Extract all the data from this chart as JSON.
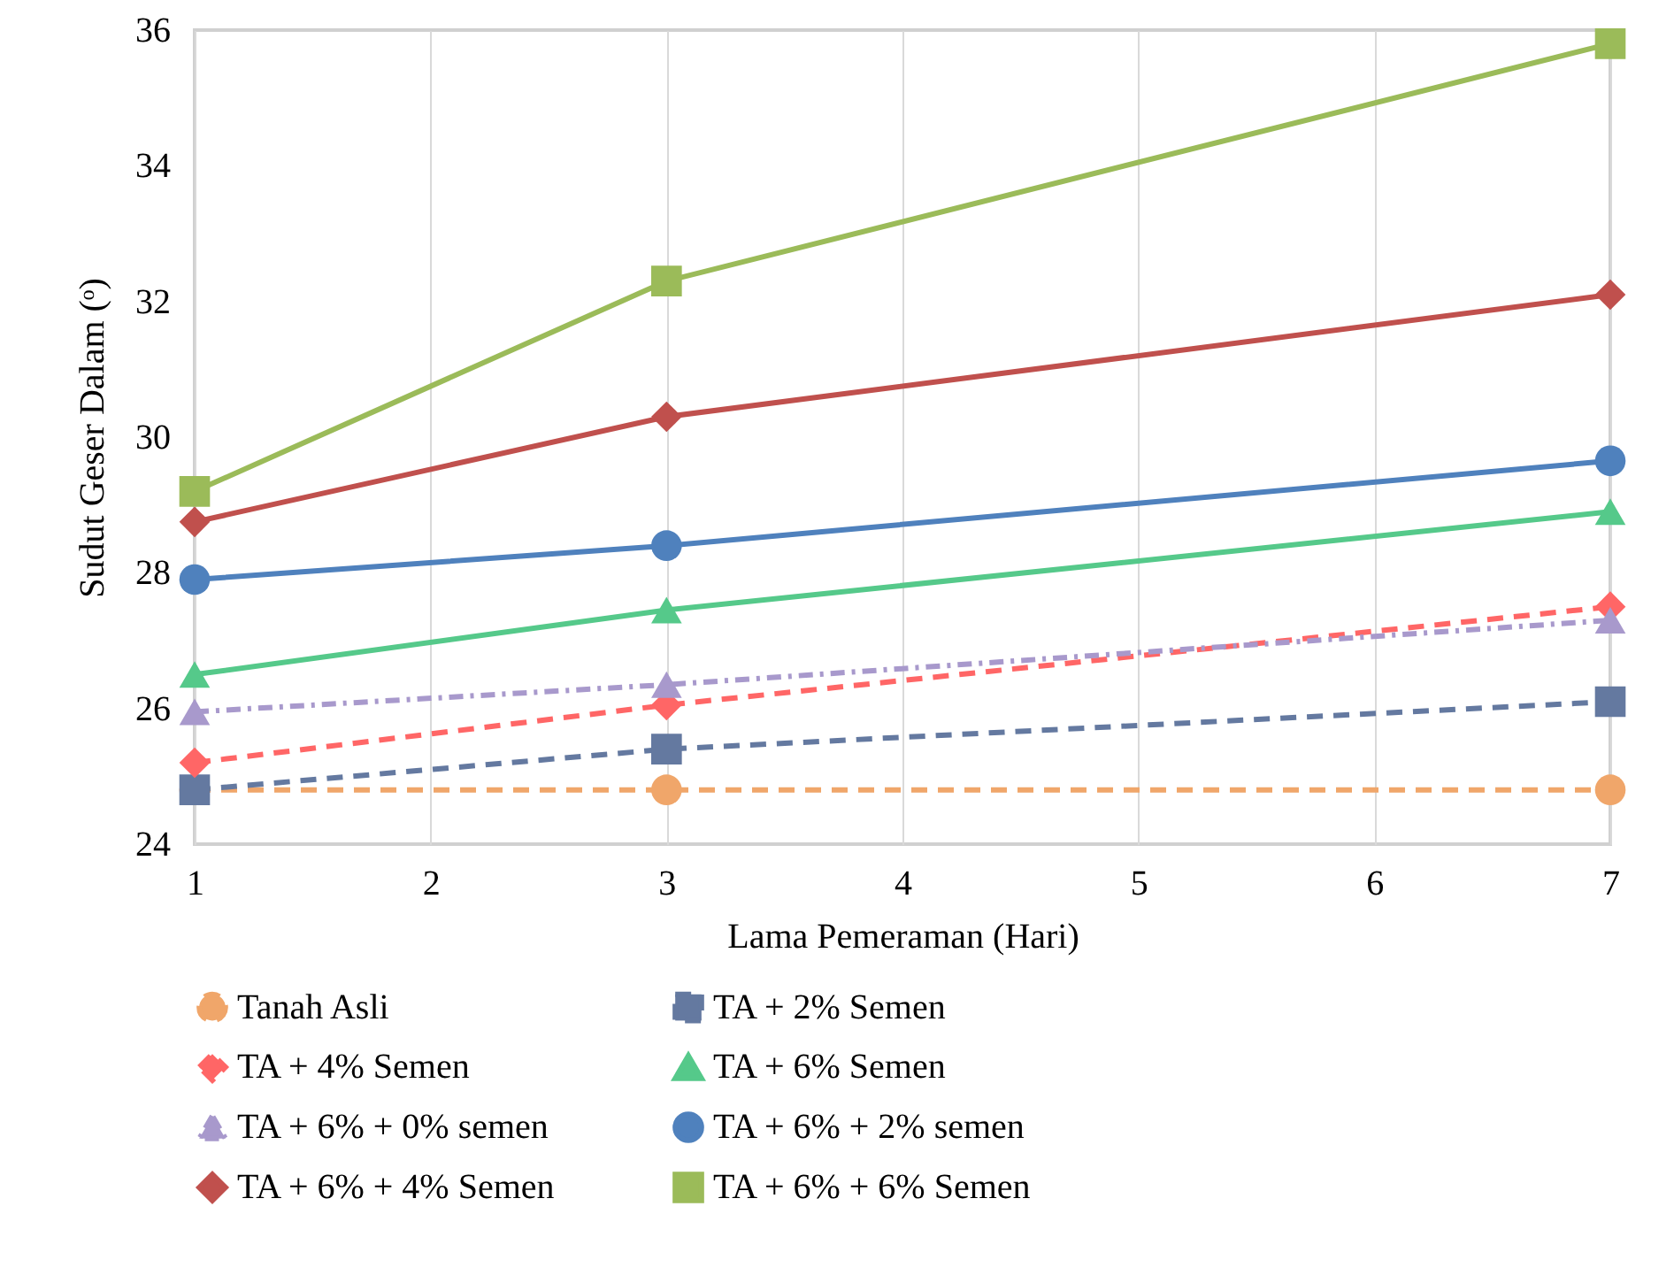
{
  "chart_data": {
    "type": "line",
    "xlabel": "Lama Pemeraman (Hari)",
    "ylabel": "Sudut Geser Dalam (ᵒ)",
    "xlim": [
      1,
      7
    ],
    "xticks": [
      1,
      2,
      3,
      4,
      5,
      6,
      7
    ],
    "ylim": [
      24,
      36
    ],
    "yticks": [
      24,
      26,
      28,
      30,
      32,
      34,
      36
    ],
    "grid": "x",
    "legend": "bottom",
    "series": [
      {
        "name": "Tanah Asli",
        "color": "#f0a66a",
        "marker": "circle",
        "line_style": "dashed",
        "x": [
          1,
          3,
          7
        ],
        "values": [
          24.8,
          24.8,
          24.8
        ]
      },
      {
        "name": "TA + 2% Semen",
        "color": "#6479a0",
        "marker": "square",
        "line_style": "dashed",
        "x": [
          1,
          3,
          7
        ],
        "values": [
          24.8,
          25.4,
          26.1
        ]
      },
      {
        "name": "TA + 4% Semen",
        "color": "#ff6666",
        "marker": "diamond",
        "line_style": "dashed",
        "x": [
          1,
          3,
          7
        ],
        "values": [
          25.2,
          26.05,
          27.5
        ]
      },
      {
        "name": "TA + 6% Semen",
        "color": "#55c98a",
        "marker": "triangle",
        "line_style": "solid",
        "x": [
          1,
          3,
          7
        ],
        "values": [
          26.5,
          27.45,
          28.9
        ]
      },
      {
        "name": "TA + 6% + 0% semen",
        "color": "#a899cc",
        "marker": "triangle",
        "line_style": "dotted",
        "x": [
          1,
          3,
          7
        ],
        "values": [
          25.95,
          26.35,
          27.3
        ]
      },
      {
        "name": "TA + 6% + 2% semen",
        "color": "#4f81bd",
        "marker": "circle",
        "line_style": "solid",
        "x": [
          1,
          3,
          7
        ],
        "values": [
          27.9,
          28.4,
          29.65
        ]
      },
      {
        "name": "TA + 6% + 4% Semen",
        "color": "#c0504d",
        "marker": "diamond",
        "line_style": "solid",
        "x": [
          1,
          3,
          7
        ],
        "values": [
          28.75,
          30.3,
          32.1
        ]
      },
      {
        "name": "TA + 6% + 6% Semen",
        "color": "#9bbb59",
        "marker": "square",
        "line_style": "solid",
        "x": [
          1,
          3,
          7
        ],
        "values": [
          29.2,
          32.3,
          35.8
        ]
      }
    ]
  }
}
